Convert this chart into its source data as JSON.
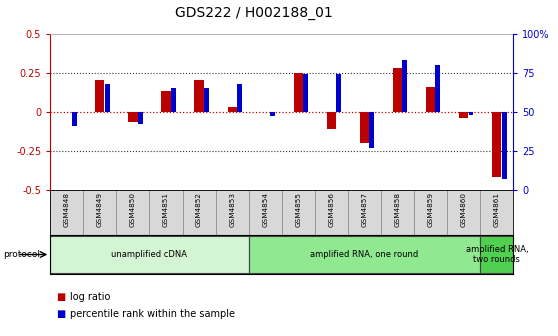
{
  "title": "GDS222 / H002188_01",
  "samples": [
    "GSM4848",
    "GSM4849",
    "GSM4850",
    "GSM4851",
    "GSM4852",
    "GSM4853",
    "GSM4854",
    "GSM4855",
    "GSM4856",
    "GSM4857",
    "GSM4858",
    "GSM4859",
    "GSM4860",
    "GSM4861"
  ],
  "log_ratio": [
    0.0,
    0.2,
    -0.065,
    0.13,
    0.2,
    0.03,
    0.0,
    0.25,
    -0.11,
    -0.2,
    0.28,
    0.16,
    -0.04,
    -0.42
  ],
  "percentile": [
    41,
    68,
    42,
    65,
    65,
    68,
    47,
    74,
    74,
    27,
    83,
    80,
    48,
    7
  ],
  "ylim_left": [
    -0.5,
    0.5
  ],
  "ylim_right": [
    0,
    100
  ],
  "yticks_left": [
    -0.5,
    -0.25,
    0.0,
    0.25,
    0.5
  ],
  "ytick_labels_left": [
    "-0.5",
    "-0.25",
    "0",
    "0.25",
    "0.5"
  ],
  "yticks_right": [
    0,
    25,
    50,
    75,
    100
  ],
  "ytick_labels_right": [
    "0",
    "25",
    "50",
    "75",
    "100%"
  ],
  "protocol_groups": [
    {
      "label": "unamplified cDNA",
      "start": 0,
      "end": 6,
      "color": "#d4f5d4"
    },
    {
      "label": "amplified RNA, one round",
      "start": 6,
      "end": 13,
      "color": "#90e890"
    },
    {
      "label": "amplified RNA,\ntwo rounds",
      "start": 13,
      "end": 14,
      "color": "#50d050"
    }
  ],
  "bar_color_red": "#bb0000",
  "bar_color_blue": "#0000cc",
  "hline0_color": "#cc0000",
  "dotted_color": "#333333",
  "background_color": "#ffffff",
  "title_fontsize": 10,
  "tick_fontsize": 7,
  "label_fontsize": 7,
  "protocol_label": "protocol",
  "legend_red": "log ratio",
  "legend_blue": "percentile rank within the sample",
  "sample_label_bg": "#d8d8d8",
  "sample_label_border": "#888888"
}
